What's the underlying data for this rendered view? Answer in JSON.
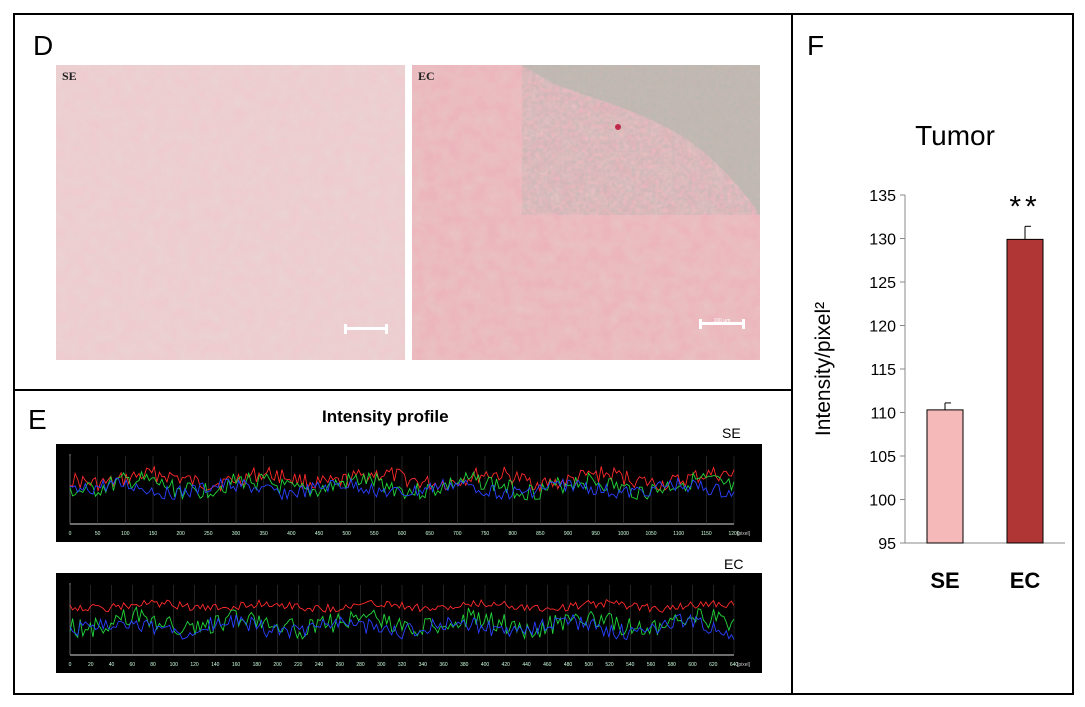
{
  "figure": {
    "panel_d": {
      "letter": "D",
      "images": [
        {
          "label": "SE",
          "tint": "#e5b9bd",
          "scale_text": ""
        },
        {
          "label": "EC",
          "tint": "#e3a7ae",
          "scale_text": "100 µm"
        }
      ]
    },
    "panel_e": {
      "letter": "E",
      "title": "Intensity profile",
      "strips": [
        {
          "label": "SE",
          "x_unit": "[pixel]",
          "ticks": [
            "0",
            "50",
            "100",
            "150",
            "200",
            "250",
            "300",
            "350",
            "400",
            "450",
            "500",
            "550",
            "600",
            "650",
            "700",
            "750",
            "800",
            "850",
            "900",
            "950",
            "1000",
            "1050",
            "1100",
            "1150",
            "1200"
          ]
        },
        {
          "label": "EC",
          "x_unit": "[pixel]",
          "ticks": [
            "0",
            "20",
            "40",
            "60",
            "80",
            "100",
            "120",
            "140",
            "160",
            "180",
            "200",
            "220",
            "240",
            "260",
            "280",
            "300",
            "320",
            "340",
            "360",
            "380",
            "400",
            "420",
            "440",
            "460",
            "480",
            "500",
            "520",
            "540",
            "560",
            "580",
            "600",
            "620",
            "640"
          ]
        }
      ]
    },
    "panel_f": {
      "letter": "F"
    }
  },
  "chart_data": {
    "type": "bar",
    "title": "Tumor",
    "xlabel": "",
    "ylabel": "Intensity/pixel²",
    "categories": [
      "SE",
      "EC"
    ],
    "values": [
      110.3,
      129.9
    ],
    "errors": [
      0.8,
      1.5
    ],
    "annotations": [
      "",
      "**"
    ],
    "colors": [
      "#f4b9b8",
      "#b03535"
    ],
    "ylim": [
      95,
      135
    ],
    "yticks": [
      95,
      100,
      105,
      110,
      115,
      120,
      125,
      130,
      135
    ],
    "grid": false,
    "legend": "none"
  }
}
